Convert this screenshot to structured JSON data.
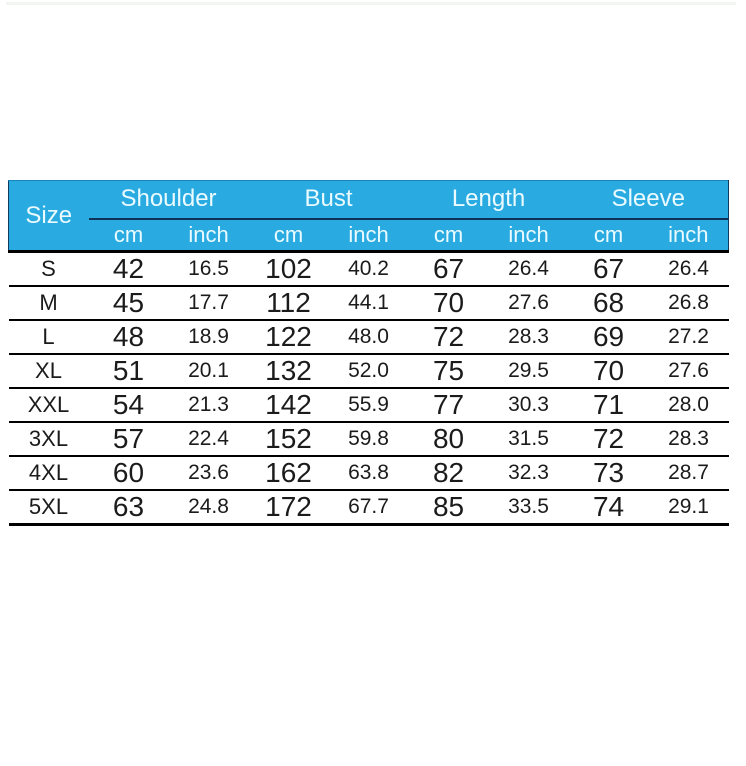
{
  "size_chart": {
    "header": {
      "size_label": "Size",
      "groups": [
        {
          "label": "Shoulder"
        },
        {
          "label": "Bust"
        },
        {
          "label": "Length"
        },
        {
          "label": "Sleeve"
        }
      ],
      "unit_cm": "cm",
      "unit_inch": "inch"
    },
    "rows": [
      {
        "size": "S",
        "cells": [
          "42",
          "16.5",
          "102",
          "40.2",
          "67",
          "26.4",
          "67",
          "26.4"
        ]
      },
      {
        "size": "M",
        "cells": [
          "45",
          "17.7",
          "112",
          "44.1",
          "70",
          "27.6",
          "68",
          "26.8"
        ]
      },
      {
        "size": "L",
        "cells": [
          "48",
          "18.9",
          "122",
          "48.0",
          "72",
          "28.3",
          "69",
          "27.2"
        ]
      },
      {
        "size": "XL",
        "cells": [
          "51",
          "20.1",
          "132",
          "52.0",
          "75",
          "29.5",
          "70",
          "27.6"
        ]
      },
      {
        "size": "XXL",
        "cells": [
          "54",
          "21.3",
          "142",
          "55.9",
          "77",
          "30.3",
          "71",
          "28.0"
        ]
      },
      {
        "size": "3XL",
        "cells": [
          "57",
          "22.4",
          "152",
          "59.8",
          "80",
          "31.5",
          "72",
          "28.3"
        ]
      },
      {
        "size": "4XL",
        "cells": [
          "60",
          "23.6",
          "162",
          "63.8",
          "82",
          "32.3",
          "73",
          "28.7"
        ]
      },
      {
        "size": "5XL",
        "cells": [
          "63",
          "24.8",
          "172",
          "67.7",
          "85",
          "33.5",
          "74",
          "29.1"
        ]
      }
    ]
  },
  "colors": {
    "header_bg": "#29abe2",
    "header_text": "#eafaff",
    "group_underline": "#0e3257",
    "grid_line": "#000000",
    "background": "#ffffff"
  },
  "chart_data": {
    "type": "table",
    "column_groups": [
      "Shoulder",
      "Bust",
      "Length",
      "Sleeve"
    ],
    "columns": [
      "Size",
      "Shoulder cm",
      "Shoulder inch",
      "Bust cm",
      "Bust inch",
      "Length cm",
      "Length inch",
      "Sleeve cm",
      "Sleeve inch"
    ],
    "rows": [
      [
        "S",
        42,
        16.5,
        102,
        40.2,
        67,
        26.4,
        67,
        26.4
      ],
      [
        "M",
        45,
        17.7,
        112,
        44.1,
        70,
        27.6,
        68,
        26.8
      ],
      [
        "L",
        48,
        18.9,
        122,
        48.0,
        72,
        28.3,
        69,
        27.2
      ],
      [
        "XL",
        51,
        20.1,
        132,
        52.0,
        75,
        29.5,
        70,
        27.6
      ],
      [
        "XXL",
        54,
        21.3,
        142,
        55.9,
        77,
        30.3,
        71,
        28.0
      ],
      [
        "3XL",
        57,
        22.4,
        152,
        59.8,
        80,
        31.5,
        72,
        28.3
      ],
      [
        "4XL",
        60,
        23.6,
        162,
        63.8,
        82,
        32.3,
        73,
        28.7
      ],
      [
        "5XL",
        63,
        24.8,
        172,
        67.7,
        85,
        33.5,
        74,
        29.1
      ]
    ],
    "legend_position": "none",
    "grid": "horizontal-lines"
  }
}
